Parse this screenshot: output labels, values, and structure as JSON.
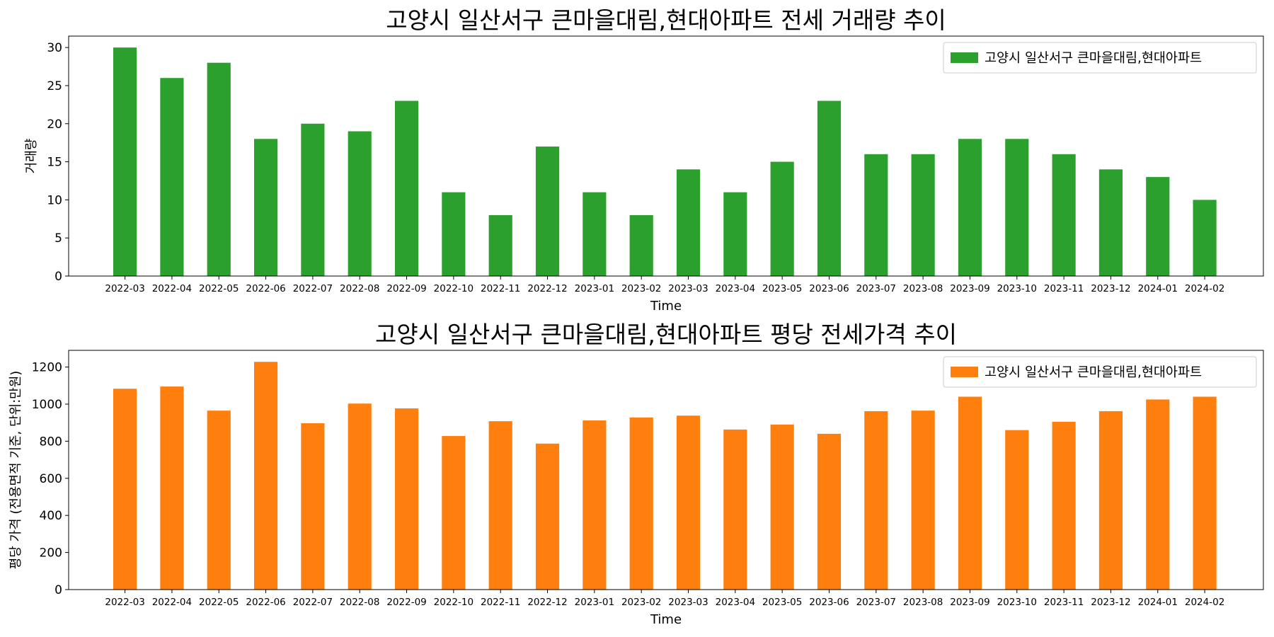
{
  "chart_data": [
    {
      "type": "bar",
      "title": "고양시 일산서구 큰마을대림,현대아파트 전세 거래량 추이",
      "xlabel": "Time",
      "ylabel": "거래량",
      "categories": [
        "2022-03",
        "2022-04",
        "2022-05",
        "2022-06",
        "2022-07",
        "2022-08",
        "2022-09",
        "2022-10",
        "2022-11",
        "2022-12",
        "2023-01",
        "2023-02",
        "2023-03",
        "2023-04",
        "2023-05",
        "2023-06",
        "2023-07",
        "2023-08",
        "2023-09",
        "2023-10",
        "2023-11",
        "2023-12",
        "2024-01",
        "2024-02"
      ],
      "series": [
        {
          "name": "고양시 일산서구 큰마을대림,현대아파트",
          "color": "#2ca02c",
          "values": [
            30,
            26,
            28,
            18,
            20,
            19,
            23,
            11,
            8,
            17,
            11,
            8,
            14,
            11,
            15,
            23,
            16,
            16,
            18,
            18,
            16,
            14,
            13,
            10
          ]
        }
      ],
      "ylim": [
        0,
        31.5
      ],
      "yticks": [
        0,
        5,
        10,
        15,
        20,
        25,
        30
      ],
      "grid": false,
      "legend": "top-right"
    },
    {
      "type": "bar",
      "title": "고양시 일산서구 큰마을대림,현대아파트 평당 전세가격 추이",
      "xlabel": "Time",
      "ylabel": "평당 가격 (전용면적 기준, 단위:만원)",
      "categories": [
        "2022-03",
        "2022-04",
        "2022-05",
        "2022-06",
        "2022-07",
        "2022-08",
        "2022-09",
        "2022-10",
        "2022-11",
        "2022-12",
        "2023-01",
        "2023-02",
        "2023-03",
        "2023-04",
        "2023-05",
        "2023-06",
        "2023-07",
        "2023-08",
        "2023-09",
        "2023-10",
        "2023-11",
        "2023-12",
        "2024-01",
        "2024-02"
      ],
      "series": [
        {
          "name": "고양시 일산서구 큰마을대림,현대아파트",
          "color": "#ff7f0e",
          "values": [
            1083,
            1095,
            965,
            1228,
            897,
            1003,
            977,
            828,
            908,
            787,
            912,
            928,
            938,
            863,
            890,
            840,
            962,
            965,
            1040,
            860,
            905,
            962,
            1025,
            1040
          ]
        }
      ],
      "ylim": [
        0,
        1290
      ],
      "yticks": [
        0,
        200,
        400,
        600,
        800,
        1000,
        1200
      ],
      "grid": false,
      "legend": "top-right"
    }
  ]
}
